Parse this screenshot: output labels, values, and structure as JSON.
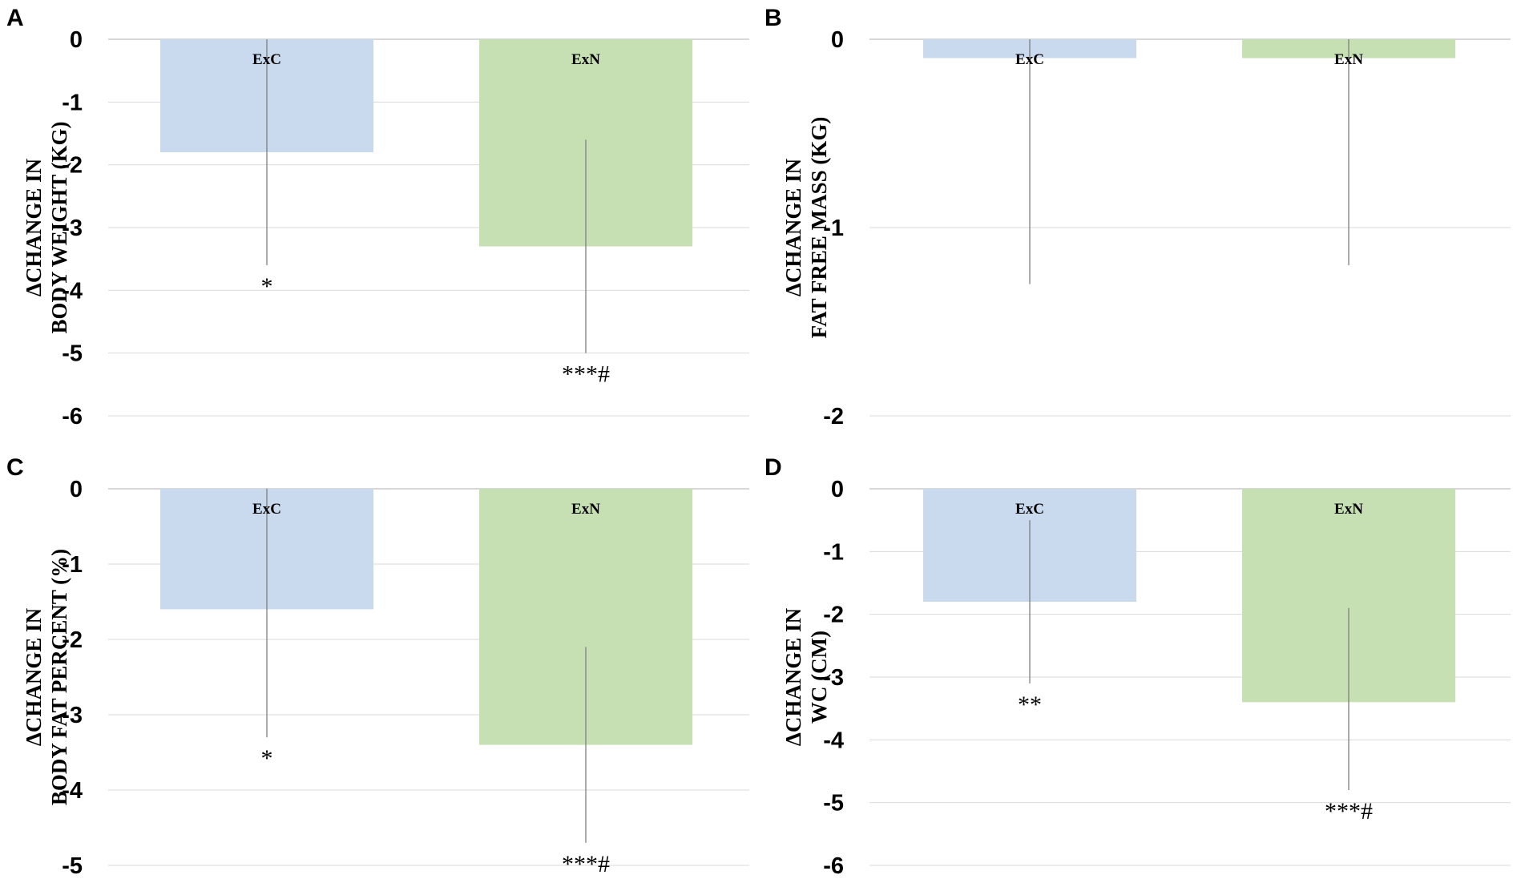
{
  "chart_data": [
    {
      "panel": "A",
      "type": "bar",
      "ylabel_lines": [
        "ΔCHANGE IN",
        "BODY WEIGHT (KG)"
      ],
      "categories": [
        "ExC",
        "ExN"
      ],
      "values": [
        -1.8,
        -3.3
      ],
      "error_low": [
        -3.6,
        -5.0
      ],
      "error_high": [
        0.0,
        -1.6
      ],
      "significance": [
        "*",
        "***#"
      ],
      "ylim": [
        -6,
        0
      ],
      "yticks": [
        0,
        -1,
        -2,
        -3,
        -4,
        -5,
        -6
      ]
    },
    {
      "panel": "B",
      "type": "bar",
      "ylabel_lines": [
        "ΔCHANGE IN",
        "FAT FREE MASS (KG)"
      ],
      "categories": [
        "ExC",
        "ExN"
      ],
      "values": [
        -0.1,
        -0.1
      ],
      "error_low": [
        -1.3,
        -1.2
      ],
      "error_high": [
        0.0,
        0.0
      ],
      "significance": [
        "",
        ""
      ],
      "ylim": [
        -2,
        0
      ],
      "yticks": [
        0,
        -1,
        -2
      ]
    },
    {
      "panel": "C",
      "type": "bar",
      "ylabel_lines": [
        "ΔCHANGE IN",
        "BODY FAT PERCENT (%)"
      ],
      "categories": [
        "ExC",
        "ExN"
      ],
      "values": [
        -1.6,
        -3.4
      ],
      "error_low": [
        -3.3,
        -4.7
      ],
      "error_high": [
        0.0,
        -2.1
      ],
      "significance": [
        "*",
        "***#"
      ],
      "ylim": [
        -5,
        0
      ],
      "yticks": [
        0,
        -1,
        -2,
        -3,
        -4,
        -5
      ]
    },
    {
      "panel": "D",
      "type": "bar",
      "ylabel_lines": [
        "ΔCHANGE IN",
        "WC (CM)"
      ],
      "categories": [
        "ExC",
        "ExN"
      ],
      "values": [
        -1.8,
        -3.4
      ],
      "error_low": [
        -3.1,
        -4.8
      ],
      "error_high": [
        -0.5,
        -1.9
      ],
      "significance": [
        "**",
        "***#"
      ],
      "ylim": [
        -6,
        0
      ],
      "yticks": [
        0,
        -1,
        -2,
        -3,
        -4,
        -5,
        -6
      ]
    }
  ],
  "colors": {
    "ExC": "#c9d9ee",
    "ExN": "#c6e0b4",
    "grid": "#d9d9d9",
    "error_bar": "#7f7f7f"
  }
}
